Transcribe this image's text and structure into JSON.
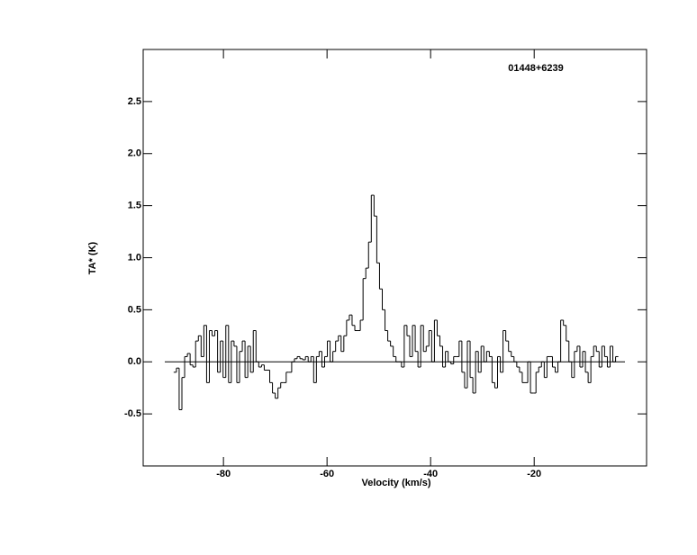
{
  "chart_data": {
    "type": "step",
    "title": "01448+6239",
    "xlabel": "Velocity (km/s)",
    "ylabel": "TA* (K)",
    "xlim": [
      -95.5,
      1.7
    ],
    "ylim": [
      -1.0,
      3.0
    ],
    "xticks": [
      -80,
      -60,
      -40,
      -20
    ],
    "yticks": [
      -0.5,
      {
        "value": 0,
        "label": "0.0"
      },
      0.5,
      {
        "value": 1,
        "label": "1.0"
      },
      1.5,
      {
        "value": 2,
        "label": "2.0"
      },
      2.5
    ],
    "color": "#000000",
    "x": [
      -89.35,
      -88.82,
      -88.29,
      -87.76,
      -87.23,
      -86.7,
      -86.17,
      -85.64,
      -85.11,
      -84.58,
      -84.05,
      -83.52,
      -82.99,
      -82.46,
      -81.93,
      -81.4,
      -80.87,
      -80.34,
      -79.81,
      -79.28,
      -78.75,
      -78.22,
      -77.69,
      -77.16,
      -76.63,
      -76.1,
      -75.57,
      -75.04,
      -74.51,
      -73.98,
      -73.45,
      -72.92,
      -72.39,
      -71.86,
      -71.33,
      -70.8,
      -70.27,
      -69.74,
      -69.21,
      -68.68,
      -68.15,
      -67.62,
      -67.09,
      -66.56,
      -66.03,
      -65.5,
      -64.97,
      -64.44,
      -63.91,
      -63.38,
      -62.85,
      -62.32,
      -61.79,
      -61.26,
      -60.73,
      -60.2,
      -59.67,
      -59.14,
      -58.61,
      -58.08,
      -57.55,
      -57.02,
      -56.49,
      -55.96,
      -55.43,
      -54.9,
      -54.37,
      -53.84,
      -53.31,
      -52.78,
      -52.25,
      -51.72,
      -51.19,
      -50.66,
      -50.13,
      -49.6,
      -49.07,
      -48.54,
      -48.01,
      -47.48,
      -46.95,
      -46.42,
      -45.89,
      -45.36,
      -44.83,
      -44.3,
      -43.77,
      -43.24,
      -42.71,
      -42.18,
      -41.65,
      -41.12,
      -40.59,
      -40.06,
      -39.53,
      -39.0,
      -38.47,
      -37.94,
      -37.41,
      -36.88,
      -36.35,
      -35.82,
      -35.29,
      -34.76,
      -34.23,
      -33.7,
      -33.17,
      -32.64,
      -32.11,
      -31.58,
      -31.05,
      -30.52,
      -29.99,
      -29.46,
      -28.93,
      -28.4,
      -27.87,
      -27.34,
      -26.81,
      -26.28,
      -25.75,
      -25.22,
      -24.69,
      -24.16,
      -23.63,
      -23.1,
      -22.57,
      -22.04,
      -21.51,
      -20.98,
      -20.45,
      -19.92,
      -19.39,
      -18.86,
      -18.33,
      -17.8,
      -17.27,
      -16.74,
      -16.21,
      -15.68,
      -15.15,
      -14.62,
      -14.09,
      -13.56,
      -13.03,
      -12.5,
      -11.97,
      -11.44,
      -10.91,
      -10.38,
      -9.85,
      -9.32,
      -8.79,
      -8.26,
      -7.73,
      -7.2,
      -6.67,
      -6.14,
      -5.61,
      -5.08,
      -4.55,
      -4.02
    ],
    "values": [
      -0.1,
      -0.06,
      -0.46,
      -0.15,
      0.05,
      0.08,
      -0.03,
      -0.05,
      0.2,
      0.25,
      0.05,
      0.35,
      -0.2,
      0.3,
      0.25,
      0.3,
      -0.1,
      0.2,
      -0.15,
      0.35,
      -0.2,
      0.2,
      0.15,
      -0.2,
      0.1,
      0.2,
      -0.15,
      0.15,
      -0.1,
      0.3,
      0.0,
      -0.05,
      -0.03,
      -0.08,
      -0.08,
      -0.2,
      -0.3,
      -0.35,
      -0.25,
      -0.2,
      -0.2,
      -0.1,
      -0.1,
      0.0,
      0.03,
      0.05,
      0.03,
      0.02,
      0.05,
      0.0,
      0.05,
      -0.2,
      0.05,
      0.1,
      -0.05,
      0.05,
      0.2,
      0.0,
      0.1,
      0.2,
      0.25,
      0.1,
      0.25,
      0.4,
      0.45,
      0.35,
      0.3,
      0.3,
      0.4,
      0.8,
      0.9,
      1.15,
      1.6,
      1.4,
      0.95,
      0.7,
      0.5,
      0.3,
      0.2,
      0.15,
      0.05,
      0.0,
      0.0,
      -0.05,
      0.35,
      0.25,
      0.05,
      0.35,
      0.1,
      -0.05,
      0.35,
      0.1,
      0.15,
      0.3,
      0.0,
      0.4,
      0.25,
      0.15,
      -0.05,
      0.1,
      0.0,
      -0.02,
      0.05,
      0.05,
      0.2,
      -0.1,
      -0.25,
      0.2,
      -0.15,
      -0.3,
      0.1,
      -0.1,
      0.15,
      0.0,
      0.1,
      0.05,
      -0.2,
      -0.25,
      0.05,
      -0.1,
      0.3,
      0.2,
      0.1,
      0.05,
      0.0,
      -0.05,
      -0.1,
      -0.2,
      -0.2,
      0.0,
      -0.3,
      -0.3,
      -0.1,
      -0.05,
      0.0,
      -0.15,
      0.05,
      0.05,
      -0.05,
      -0.1,
      0.0,
      0.4,
      0.35,
      0.2,
      0.0,
      -0.15,
      0.1,
      0.15,
      -0.05,
      0.1,
      -0.1,
      -0.2,
      0.05,
      0.15,
      0.1,
      -0.05,
      0.15,
      0.05,
      -0.05,
      0.15,
      0.0,
      0.05
    ]
  }
}
